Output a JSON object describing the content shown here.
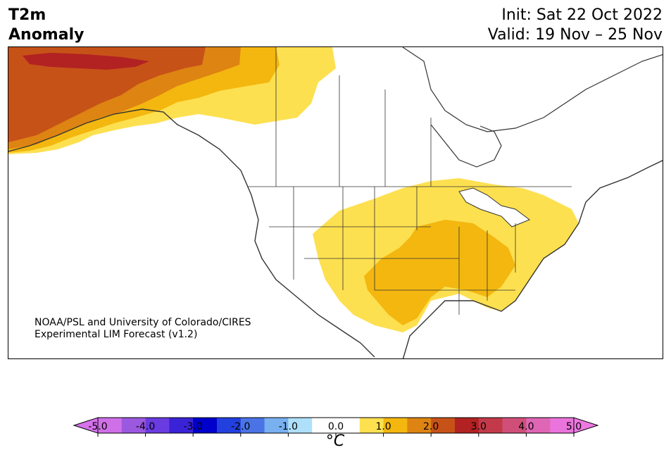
{
  "header": {
    "title_line1": "T2m",
    "title_line2": "Anomaly",
    "init": "Init: Sat 22 Oct 2022",
    "valid": "Valid: 19 Nov – 25 Nov"
  },
  "credit": {
    "line1": "NOAA/PSL and University of Colorado/CIRES",
    "line2": "Experimental LIM Forecast (v1.2)"
  },
  "colorbar": {
    "unit": "°C",
    "ticks": [
      "-5.0",
      "-4.0",
      "-3.0",
      "-2.0",
      "-1.0",
      "0.0",
      "1.0",
      "2.0",
      "3.0",
      "4.0",
      "5.0"
    ],
    "colors": [
      "#d070e8",
      "#9b59e0",
      "#6a3be0",
      "#3a22d6",
      "#0000cc",
      "#2240dd",
      "#4a74e6",
      "#78b0f0",
      "#aee0fa",
      "#ffffff",
      "#ffffff",
      "#fde050",
      "#f3b70f",
      "#de8412",
      "#c65218",
      "#b22222",
      "#c23a4a",
      "#cf4f78",
      "#df66b4",
      "#eb74dc"
    ],
    "min_extend_color": "#d672ec",
    "max_extend_color": "#ef78e2"
  },
  "map": {
    "region": "North America",
    "anomaly_colors": {
      "0.5-1.0": "#fde050",
      "1.0-1.5": "#f3b70f",
      "1.5-2.0": "#de8412",
      "2.0-2.5": "#c65218",
      "2.5-3.0": "#b22222"
    }
  }
}
